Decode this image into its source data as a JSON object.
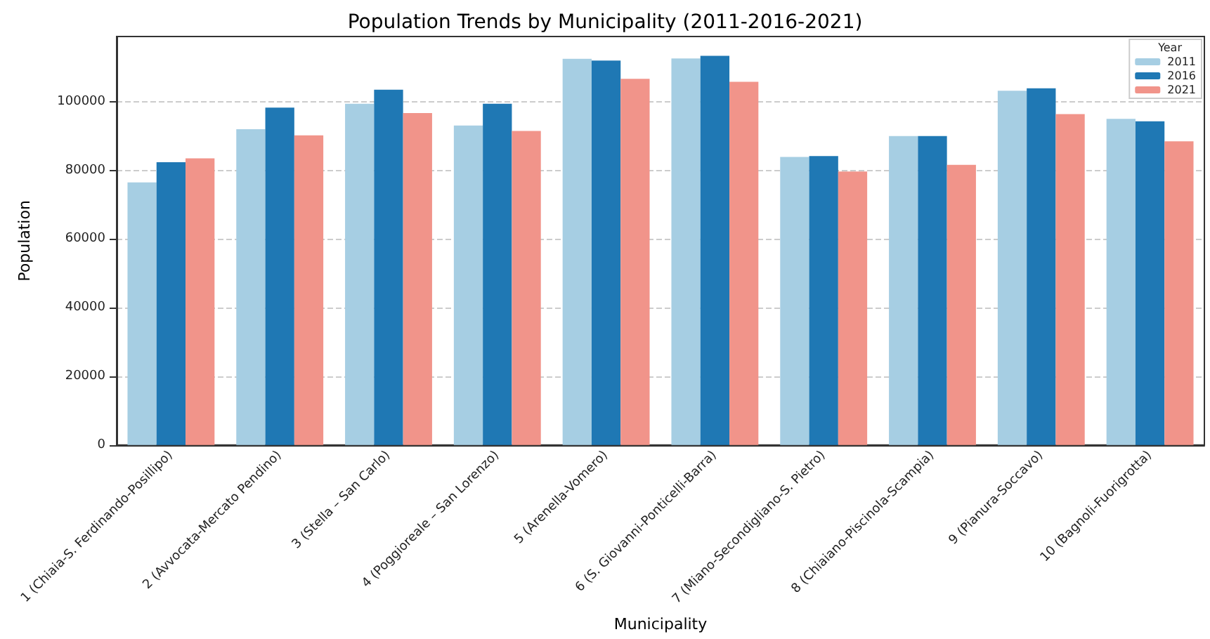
{
  "chart_data": {
    "type": "bar",
    "title": "Population Trends by Municipality (2011-2016-2021)",
    "xlabel": "Municipality",
    "ylabel": "Population",
    "legend_title": "Year",
    "categories": [
      "1 (Chiaia-S. Ferdinando-Posillipo)",
      "2 (Avvocata-Mercato Pendino)",
      "3 (Stella – San Carlo)",
      "4 (Poggioreale – San Lorenzo)",
      "5 (Arenella-Vomero)",
      "6 (S. Giovanni-Ponticelli-Barra)",
      "7 (Miano-Secondigliano-S. Pietro)",
      "8 (Chiaiano-Piscinola-Scampia)",
      "9 (Pianura-Soccavo)",
      "10 (Bagnoli-Fuorigrotta)"
    ],
    "series": [
      {
        "name": "2011",
        "color": "#a6cee3",
        "values": [
          76500,
          92000,
          99400,
          93100,
          112500,
          112600,
          83900,
          90000,
          103200,
          95000
        ]
      },
      {
        "name": "2016",
        "color": "#1f78b4",
        "values": [
          82400,
          98300,
          103500,
          99400,
          112000,
          113400,
          84200,
          90000,
          103900,
          94300
        ]
      },
      {
        "name": "2021",
        "color": "#f1948a",
        "values": [
          83500,
          90200,
          96700,
          91500,
          106700,
          105800,
          79700,
          81600,
          96400,
          88500
        ]
      }
    ],
    "ylim": [
      0,
      119000
    ],
    "yticks": [
      0,
      20000,
      40000,
      60000,
      80000,
      100000
    ],
    "grid": "y",
    "legend": "top right"
  }
}
